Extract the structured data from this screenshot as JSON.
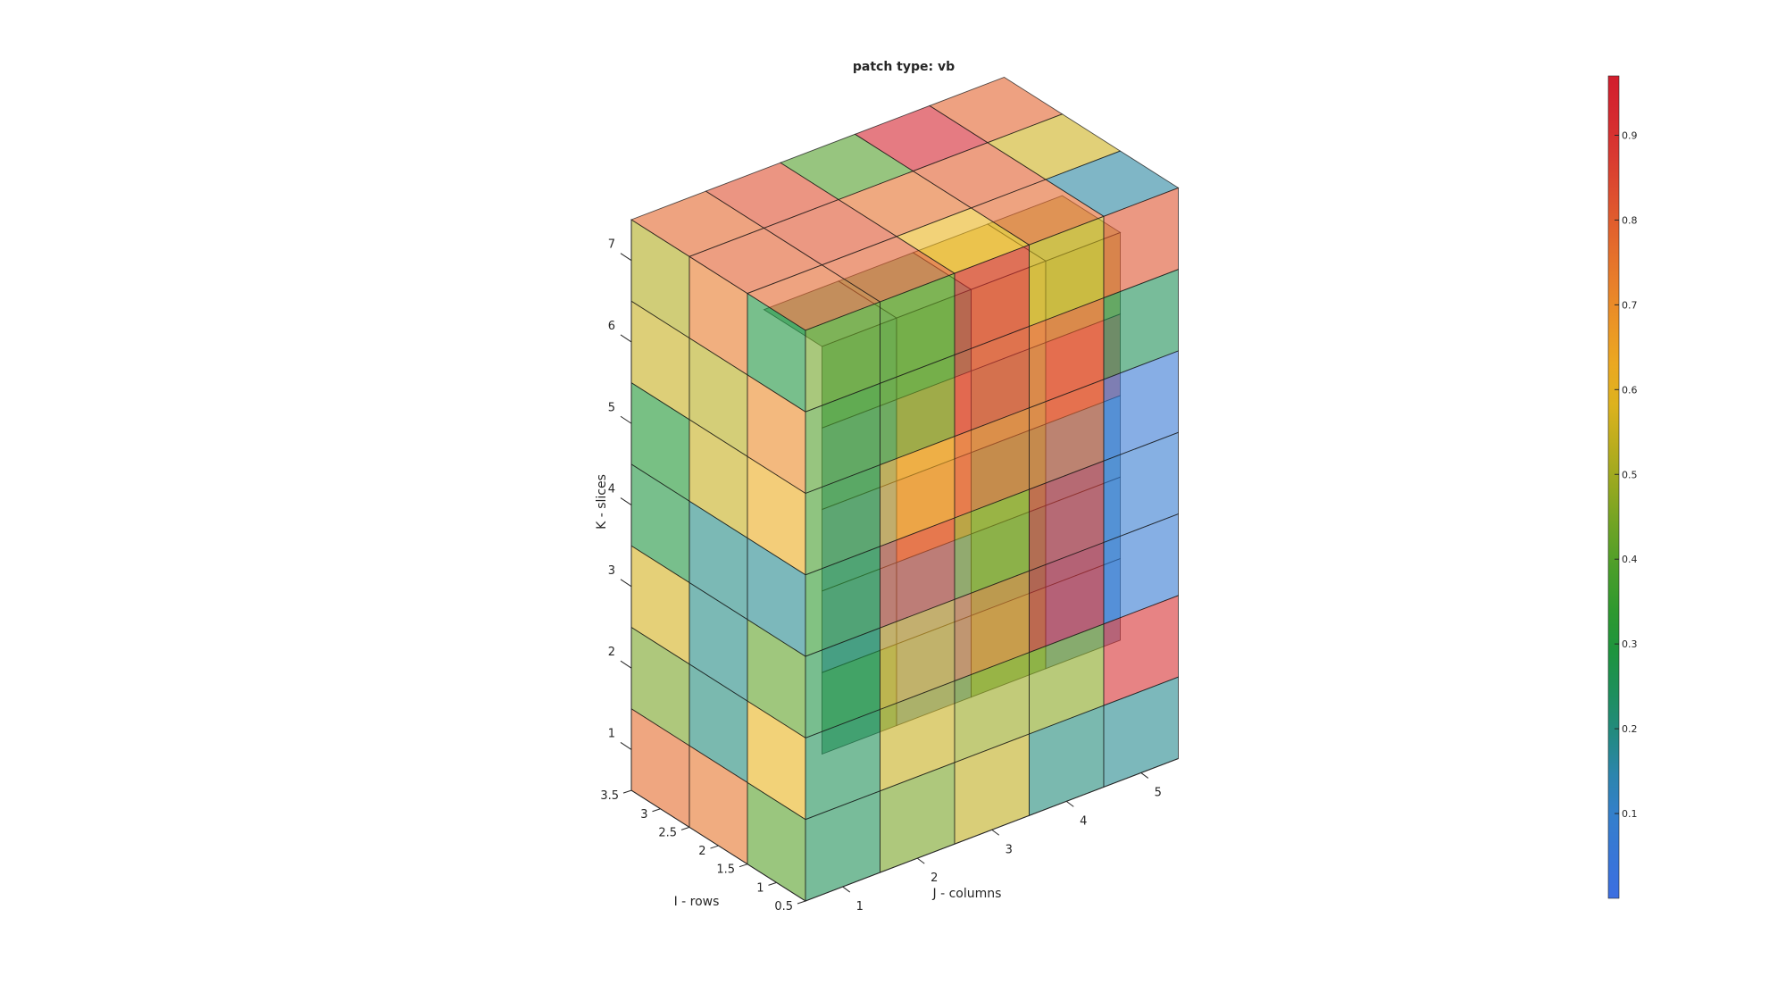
{
  "chart_data": {
    "type": "heatmap",
    "title": "patch type: vb",
    "xlabel": "J - columns",
    "ylabel": "I - rows",
    "zlabel": "K - slices",
    "x_ticks": [
      "1",
      "2",
      "3",
      "4",
      "5"
    ],
    "y_ticks": [
      "0.5",
      "1",
      "1.5",
      "2",
      "2.5",
      "3",
      "3.5"
    ],
    "z_ticks": [
      "1",
      "2",
      "3",
      "4",
      "5",
      "6",
      "7"
    ],
    "xlim": [
      0.5,
      5.5
    ],
    "ylim": [
      0.5,
      3.5
    ],
    "zlim": [
      0.5,
      7.5
    ],
    "colormap": "turbo",
    "clim": [
      0.0,
      0.97
    ],
    "colorbar_ticks": [
      "0.1",
      "0.2",
      "0.3",
      "0.4",
      "0.5",
      "0.6",
      "0.7",
      "0.8",
      "0.9"
    ],
    "face_alpha": 0.6,
    "front_face_values": [
      [
        0.44,
        0.43,
        0.92,
        0.55,
        0.82
      ],
      [
        0.4,
        0.43,
        0.89,
        0.8,
        0.25
      ],
      [
        0.38,
        0.63,
        0.78,
        0.79,
        0.06
      ],
      [
        0.34,
        0.8,
        0.49,
        0.88,
        0.08
      ],
      [
        0.28,
        0.61,
        0.72,
        0.92,
        0.07
      ],
      [
        0.25,
        0.55,
        0.49,
        0.47,
        0.9
      ],
      [
        0.25,
        0.45,
        0.54,
        0.2,
        0.18
      ]
    ],
    "left_face_values": [
      [
        0.52,
        0.74,
        0.29
      ],
      [
        0.55,
        0.53,
        0.7
      ],
      [
        0.31,
        0.55,
        0.62
      ],
      [
        0.29,
        0.19,
        0.18
      ],
      [
        0.57,
        0.19,
        0.42
      ],
      [
        0.45,
        0.2,
        0.6
      ],
      [
        0.77,
        0.75,
        0.41
      ]
    ],
    "top_face_values": [
      [
        0.78,
        0.83,
        0.4,
        0.95,
        0.79
      ],
      [
        0.8,
        0.82,
        0.76,
        0.8,
        0.56
      ],
      [
        0.78,
        0.8,
        0.6,
        0.78,
        0.16
      ]
    ],
    "inner_slab_values": [
      [
        0.28,
        0.36,
        0.58,
        0.52
      ],
      [
        0.18,
        0.7,
        0.52,
        0.88
      ],
      [
        0.12,
        0.79,
        0.41,
        0.13
      ],
      [
        0.1,
        0.05,
        0.3,
        0.12
      ],
      [
        0.25,
        0.12,
        0.4,
        0.1
      ]
    ]
  }
}
